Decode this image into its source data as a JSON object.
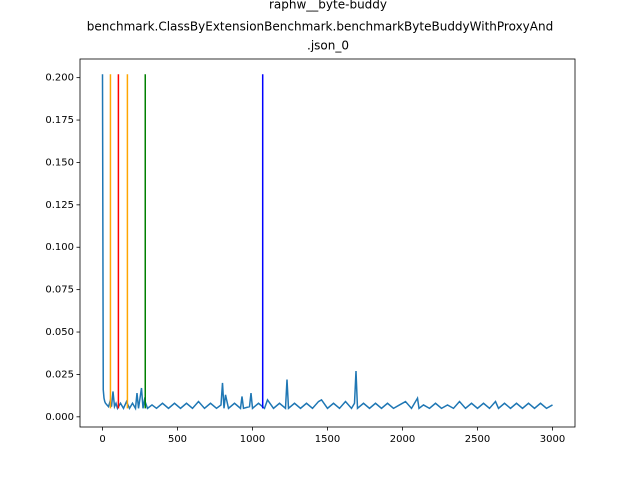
{
  "chart_data": {
    "type": "line",
    "title": [
      "raphw__byte-buddy",
      "benchmark.ClassByExtensionBenchmark.benchmarkByteBuddyWithProxyAnd",
      ".json_0"
    ],
    "x": [
      0,
      5,
      10,
      15,
      20,
      30,
      40,
      50,
      60,
      70,
      80,
      90,
      100,
      120,
      140,
      160,
      180,
      200,
      220,
      230,
      240,
      260,
      270,
      280,
      300,
      330,
      360,
      400,
      440,
      480,
      520,
      560,
      600,
      640,
      680,
      720,
      760,
      790,
      800,
      810,
      820,
      840,
      880,
      920,
      930,
      940,
      980,
      990,
      1000,
      1040,
      1080,
      1100,
      1140,
      1180,
      1220,
      1230,
      1240,
      1280,
      1320,
      1360,
      1400,
      1440,
      1460,
      1500,
      1540,
      1580,
      1620,
      1660,
      1680,
      1690,
      1700,
      1740,
      1780,
      1820,
      1860,
      1900,
      1940,
      1980,
      2020,
      2060,
      2100,
      2110,
      2140,
      2180,
      2220,
      2260,
      2300,
      2340,
      2380,
      2420,
      2460,
      2500,
      2540,
      2580,
      2620,
      2640,
      2680,
      2720,
      2760,
      2800,
      2840,
      2880,
      2920,
      2960,
      3000
    ],
    "series": [
      {
        "color": "#1f77b4",
        "values": [
          0.202,
          0.016,
          0.011,
          0.009,
          0.008,
          0.007,
          0.006,
          0.009,
          0.006,
          0.015,
          0.006,
          0.008,
          0.005,
          0.008,
          0.005,
          0.009,
          0.005,
          0.008,
          0.005,
          0.014,
          0.005,
          0.017,
          0.005,
          0.01,
          0.005,
          0.007,
          0.005,
          0.008,
          0.005,
          0.008,
          0.005,
          0.008,
          0.005,
          0.009,
          0.005,
          0.008,
          0.005,
          0.007,
          0.02,
          0.005,
          0.013,
          0.005,
          0.008,
          0.005,
          0.012,
          0.005,
          0.006,
          0.014,
          0.005,
          0.008,
          0.005,
          0.01,
          0.005,
          0.008,
          0.005,
          0.022,
          0.005,
          0.008,
          0.005,
          0.008,
          0.005,
          0.009,
          0.01,
          0.005,
          0.008,
          0.005,
          0.009,
          0.005,
          0.008,
          0.027,
          0.005,
          0.008,
          0.005,
          0.008,
          0.005,
          0.008,
          0.005,
          0.007,
          0.009,
          0.005,
          0.011,
          0.005,
          0.007,
          0.005,
          0.008,
          0.005,
          0.007,
          0.005,
          0.009,
          0.005,
          0.008,
          0.005,
          0.008,
          0.005,
          0.009,
          0.005,
          0.008,
          0.005,
          0.008,
          0.005,
          0.008,
          0.005,
          0.008,
          0.005,
          0.007
        ]
      }
    ],
    "vlines": [
      {
        "x": 53,
        "color": "orange"
      },
      {
        "x": 106,
        "color": "red"
      },
      {
        "x": 166,
        "color": "orange"
      },
      {
        "x": 285,
        "color": "green"
      },
      {
        "x": 1068,
        "color": "blue"
      }
    ],
    "vline_range": [
      0.005,
      0.202
    ],
    "xlim": [
      -150,
      3150
    ],
    "ylim": [
      -0.006,
      0.211
    ],
    "xticks": [
      0,
      500,
      1000,
      1500,
      2000,
      2500,
      3000
    ],
    "yticks": [
      {
        "value": 0,
        "label": "0.000"
      },
      {
        "value": 0.025,
        "label": "0.025"
      },
      {
        "value": 0.05,
        "label": "0.050"
      },
      {
        "value": 0.075,
        "label": "0.075"
      },
      {
        "value": 0.1,
        "label": "0.100"
      },
      {
        "value": 0.125,
        "label": "0.125"
      },
      {
        "value": 0.15,
        "label": "0.150"
      },
      {
        "value": 0.175,
        "label": "0.175"
      },
      {
        "value": 0.2,
        "label": "0.200"
      }
    ]
  }
}
